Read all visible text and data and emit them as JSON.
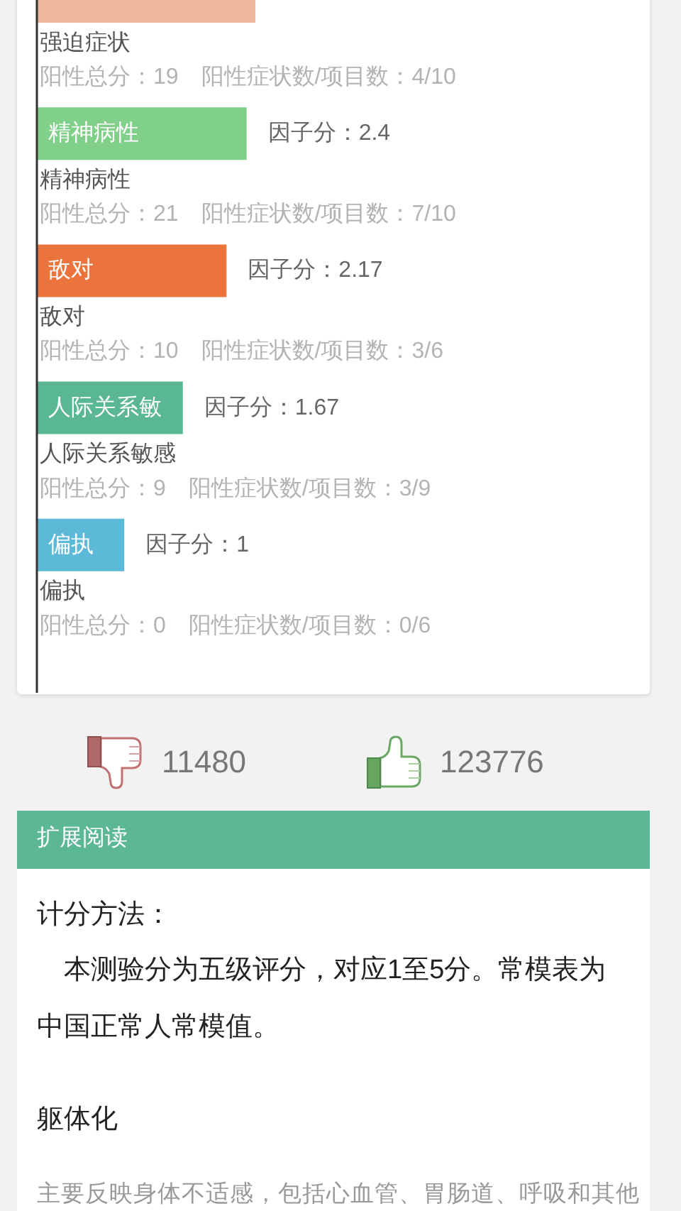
{
  "chart_data": {
    "type": "bar",
    "orientation": "horizontal",
    "categories": [
      "强迫症状",
      "精神病性",
      "敌对",
      "人际关系敏感",
      "偏执"
    ],
    "values": [
      2.5,
      2.4,
      2.17,
      1.67,
      1
    ],
    "colors": [
      "#efb59d",
      "#80d08a",
      "#eb743c",
      "#59b792",
      "#5db9d8"
    ],
    "value_labels": [
      null,
      "因子分：2.4",
      "因子分：2.17",
      "因子分：1.67",
      "因子分：1"
    ],
    "tick_labels": "y",
    "annotations": [
      "阳性总分：19　阳性症状数/项目数：4/10",
      "精神病性",
      "阳性总分：21　阳性症状数/项目数：7/10",
      "敌对",
      "阳性总分：10　阳性症状数/项目数：3/6",
      "人际关系敏",
      "阳性总分：9　阳性症状数/项目数：3/9",
      "偏执",
      "阳性总分：0　阳性症状数/项目数：0/6",
      "11480",
      "123776",
      "扩展阅读",
      "计分方法：",
      "本测验分为五级评分，对应1至5分。常模表为中国正常人常模值。",
      "躯体化",
      "主要反映身体不适感，包括心血管、胃肠道、呼吸和其他"
    ]
  }
}
